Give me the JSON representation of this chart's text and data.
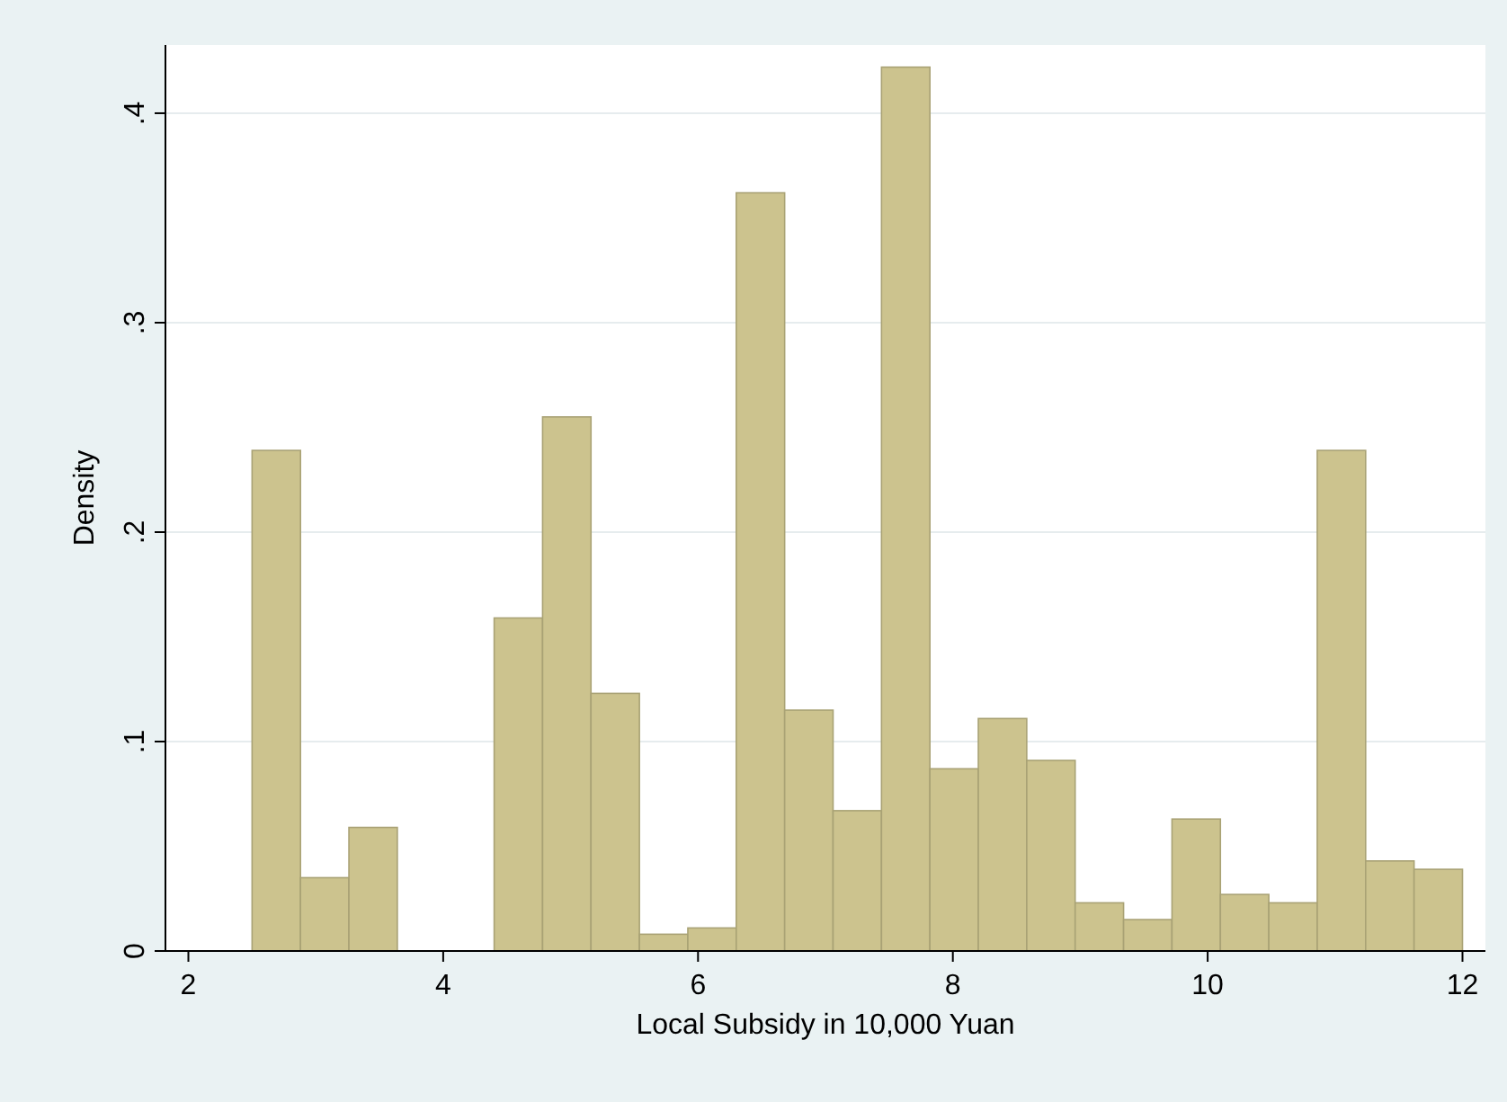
{
  "chart_data": {
    "type": "histogram",
    "xlabel": "Local Subsidy in 10,000 Yuan",
    "ylabel": "Density",
    "bins": [
      2.5,
      2.88,
      3.26,
      3.64,
      4.02,
      4.4,
      4.78,
      5.16,
      5.54,
      5.92,
      6.3,
      6.68,
      7.06,
      7.44,
      7.82,
      8.2,
      8.58,
      8.96,
      9.34,
      9.72,
      10.1,
      10.48,
      10.86,
      11.24,
      11.62,
      12
    ],
    "values": [
      0.239,
      0.035,
      0.059,
      0,
      0,
      0.159,
      0.255,
      0.123,
      0.008,
      0.011,
      0.362,
      0.115,
      0.067,
      0.422,
      0.087,
      0.111,
      0.091,
      0.023,
      0.015,
      0.063,
      0.027,
      0.023,
      0.239,
      0.043,
      0.039
    ],
    "color": "#ccc38e",
    "xlim": [
      1.82,
      12.18
    ],
    "xticks": [
      2,
      4,
      6,
      8,
      10,
      12
    ],
    "ylim": [
      0,
      0.4326
    ],
    "yticks": [
      {
        "value": 0,
        "label": "0"
      },
      {
        "value": 0.1,
        "label": ".1"
      },
      {
        "value": 0.2,
        "label": ".2"
      },
      {
        "value": 0.3,
        "label": ".3"
      },
      {
        "value": 0.4,
        "label": ".4"
      }
    ],
    "grid": "y"
  }
}
